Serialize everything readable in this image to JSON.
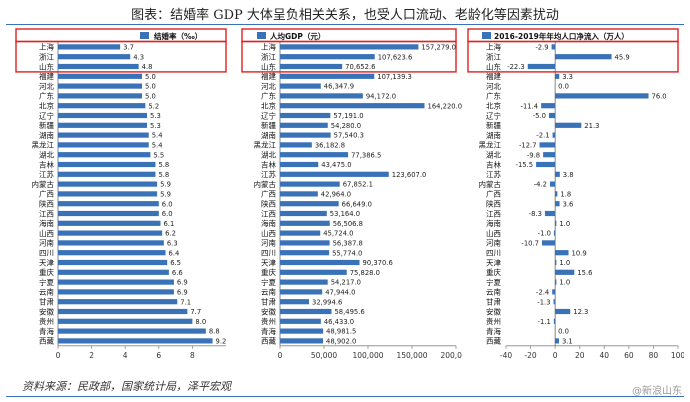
{
  "page_title": "图表：结婚率 GDP 大体呈负相关关系，也受人口流动、老龄化等因素扰动",
  "source": "资料来源：民政部，国家统计局，泽平宏观",
  "watermark": "@新浪山东",
  "colors": {
    "bar": "#3a72b8",
    "highlight": "#e02020",
    "rule": "#3a72b8"
  },
  "chart_data": [
    {
      "type": "bar",
      "orientation": "horizontal",
      "title": "结婚率（‰）",
      "categories": [
        "上海",
        "浙江",
        "山东",
        "福建",
        "河北",
        "广东",
        "北京",
        "辽宁",
        "新疆",
        "湖南",
        "黑龙江",
        "湖北",
        "吉林",
        "江苏",
        "内蒙古",
        "广西",
        "陕西",
        "江西",
        "海南",
        "山西",
        "河南",
        "四川",
        "天津",
        "重庆",
        "宁夏",
        "云南",
        "甘肃",
        "安徽",
        "贵州",
        "青海",
        "西藏"
      ],
      "values": [
        3.7,
        4.3,
        4.8,
        5.0,
        5.0,
        5.0,
        5.2,
        5.3,
        5.3,
        5.4,
        5.4,
        5.5,
        5.8,
        5.8,
        5.9,
        5.9,
        6.0,
        6.0,
        6.1,
        6.2,
        6.3,
        6.4,
        6.5,
        6.6,
        6.9,
        6.9,
        7.1,
        7.7,
        8.0,
        8.8,
        9.2
      ],
      "value_labels": [
        "3.7",
        "4.3",
        "4.8",
        "5.0",
        "5.0",
        "5.0",
        "5.2",
        "5.3",
        "5.3",
        "5.4",
        "5.4",
        "5.5",
        "5.8",
        "5.8",
        "5.9",
        "5.9",
        "6.0",
        "6.0",
        "6.1",
        "6.2",
        "6.3",
        "6.4",
        "6.5",
        "6.6",
        "6.9",
        "6.9",
        "7.1",
        "7.7",
        "8.0",
        "8.8",
        "9.2"
      ],
      "xlim": [
        0,
        10
      ],
      "xticks": [
        0,
        2,
        4,
        6,
        8
      ],
      "xtick_labels": [
        "0",
        "2",
        "4",
        "6",
        "8"
      ],
      "highlighted": [
        "上海",
        "浙江",
        "山东"
      ]
    },
    {
      "type": "bar",
      "orientation": "horizontal",
      "title": "人均GDP（元）",
      "categories": [
        "上海",
        "浙江",
        "山东",
        "福建",
        "河北",
        "广东",
        "北京",
        "辽宁",
        "新疆",
        "湖南",
        "黑龙江",
        "湖北",
        "吉林",
        "江苏",
        "内蒙古",
        "广西",
        "陕西",
        "江西",
        "海南",
        "山西",
        "河南",
        "四川",
        "天津",
        "重庆",
        "宁夏",
        "云南",
        "甘肃",
        "安徽",
        "贵州",
        "青海",
        "西藏"
      ],
      "values": [
        157279.0,
        107623.6,
        70652.6,
        107139.3,
        46347.9,
        94172.0,
        164220.0,
        57191.0,
        54280.0,
        57540.3,
        36182.8,
        77386.5,
        43475.0,
        123607.0,
        67852.1,
        42964.0,
        66649.0,
        53164.0,
        56506.8,
        45724.0,
        56387.8,
        55774.0,
        90370.6,
        75828.0,
        54217.0,
        47944.0,
        32994.6,
        58495.6,
        46433.0,
        48981.5,
        48902.0
      ],
      "value_labels": [
        "157,279.0",
        "107,623.6",
        "70,652.6",
        "107,139.3",
        "46,347.9",
        "94,172.0",
        "164,220.0",
        "57,191.0",
        "54,280.0",
        "57,540.3",
        "36,182.8",
        "77,386.5",
        "43,475.0",
        "123,607.0",
        "67,852.1",
        "42,964.0",
        "66,649.0",
        "53,164.0",
        "56,506.8",
        "45,724.0",
        "56,387.8",
        "55,774.0",
        "90,370.6",
        "75,828.0",
        "54,217.0",
        "47,944.0",
        "32,994.6",
        "58,495.6",
        "46,433.0",
        "48,981.5",
        "48,902.0"
      ],
      "xlim": [
        0,
        200000
      ],
      "xticks": [
        0,
        50000,
        100000,
        150000,
        200000
      ],
      "xtick_labels": [
        "0",
        "50,000",
        "100,000",
        "150,000",
        "200,000"
      ],
      "highlighted": [
        "上海",
        "浙江",
        "山东"
      ]
    },
    {
      "type": "bar",
      "orientation": "horizontal",
      "title": "2016-2019年年均人口净流入（万人）",
      "categories": [
        "上海",
        "浙江",
        "山东",
        "福建",
        "河北",
        "广东",
        "北京",
        "辽宁",
        "新疆",
        "湖南",
        "黑龙江",
        "湖北",
        "吉林",
        "江苏",
        "内蒙古",
        "广西",
        "陕西",
        "江西",
        "海南",
        "山西",
        "河南",
        "四川",
        "天津",
        "重庆",
        "宁夏",
        "云南",
        "甘肃",
        "安徽",
        "贵州",
        "青海",
        "西藏"
      ],
      "values": [
        -2.9,
        45.9,
        -22.3,
        3.3,
        0.0,
        76.0,
        -11.4,
        -5.0,
        21.3,
        -2.1,
        -12.7,
        -9.8,
        -15.5,
        3.8,
        -4.2,
        1.8,
        3.6,
        -8.3,
        1.0,
        -1.0,
        -10.7,
        10.9,
        1.0,
        15.6,
        1.0,
        -2.4,
        -1.3,
        12.3,
        -1.1,
        0.0,
        3.1
      ],
      "value_labels": [
        "-2.9",
        "45.9",
        "-22.3",
        "3.3",
        "0.0",
        "76.0",
        "-11.4",
        "-5.0",
        "21.3",
        "-2.1",
        "-12.7",
        "-9.8",
        "-15.5",
        "3.8",
        "-4.2",
        "1.8",
        "3.6",
        "-8.3",
        "1.0",
        "-1.0",
        "-10.7",
        "10.9",
        "1.0",
        "15.6",
        "1.0",
        "-2.4",
        "-1.3",
        "12.3",
        "-1.1",
        "0.0",
        "3.1"
      ],
      "xlim": [
        -40,
        100
      ],
      "xticks": [
        -40,
        -20,
        0,
        20,
        40,
        60,
        80,
        100
      ],
      "xtick_labels": [
        "-40",
        "-20",
        "0",
        "20",
        "40",
        "60",
        "80",
        "100"
      ],
      "highlighted": [
        "上海",
        "浙江",
        "山东"
      ]
    }
  ]
}
